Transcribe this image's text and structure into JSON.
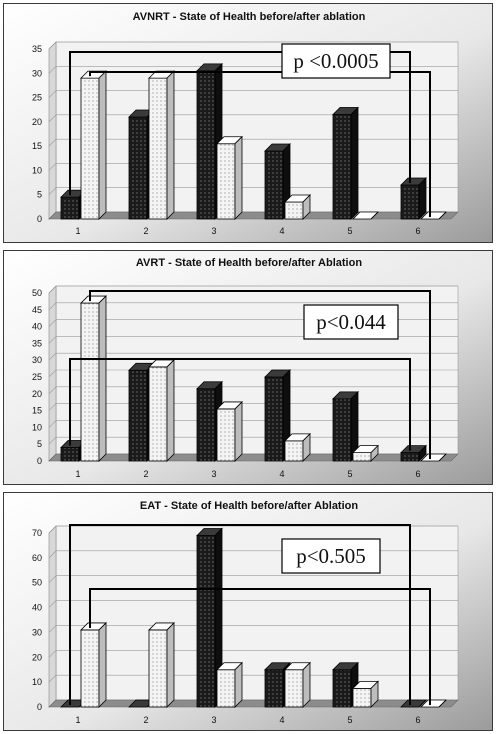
{
  "colors": {
    "before": "#1a1a1a",
    "after": "#f4f4f4",
    "bracket": "#000000"
  },
  "chart_data": [
    {
      "type": "bar",
      "title": "AVNRT - State of Health before/after ablation",
      "categories": [
        "1",
        "2",
        "3",
        "4",
        "5",
        "6"
      ],
      "series": [
        {
          "values": [
            4.5,
            21,
            30.5,
            14,
            21.5,
            7
          ]
        },
        {
          "values": [
            29,
            29,
            15.5,
            3.5,
            0,
            0
          ]
        }
      ],
      "ylim": [
        0,
        35
      ],
      "yticks": [
        "0",
        "5",
        "10",
        "15",
        "20",
        "25",
        "30",
        "35"
      ],
      "annotation": "p <0.0005",
      "grid": true
    },
    {
      "type": "bar",
      "title": "AVRT - State of Health before/after Ablation",
      "categories": [
        "1",
        "2",
        "3",
        "4",
        "5",
        "6"
      ],
      "series": [
        {
          "values": [
            4,
            27,
            21.5,
            25,
            18.5,
            2.5
          ]
        },
        {
          "values": [
            47,
            28,
            15.5,
            6,
            2.5,
            0
          ]
        }
      ],
      "ylim": [
        0,
        50
      ],
      "yticks": [
        "0",
        "5",
        "10",
        "15",
        "20",
        "25",
        "30",
        "35",
        "40",
        "45",
        "50"
      ],
      "annotation": "p<0.044",
      "grid": true
    },
    {
      "type": "bar",
      "title": "EAT - State of Health before/after Ablation",
      "categories": [
        "1",
        "2",
        "3",
        "4",
        "5",
        "6"
      ],
      "series": [
        {
          "values": [
            0,
            0,
            69,
            15,
            15,
            0
          ]
        },
        {
          "values": [
            31,
            31,
            15,
            15,
            7.5,
            0
          ]
        }
      ],
      "ylim": [
        0,
        70
      ],
      "yticks": [
        "0",
        "10",
        "20",
        "30",
        "40",
        "50",
        "60",
        "70"
      ],
      "annotation": "p<0.505",
      "grid": true
    }
  ]
}
